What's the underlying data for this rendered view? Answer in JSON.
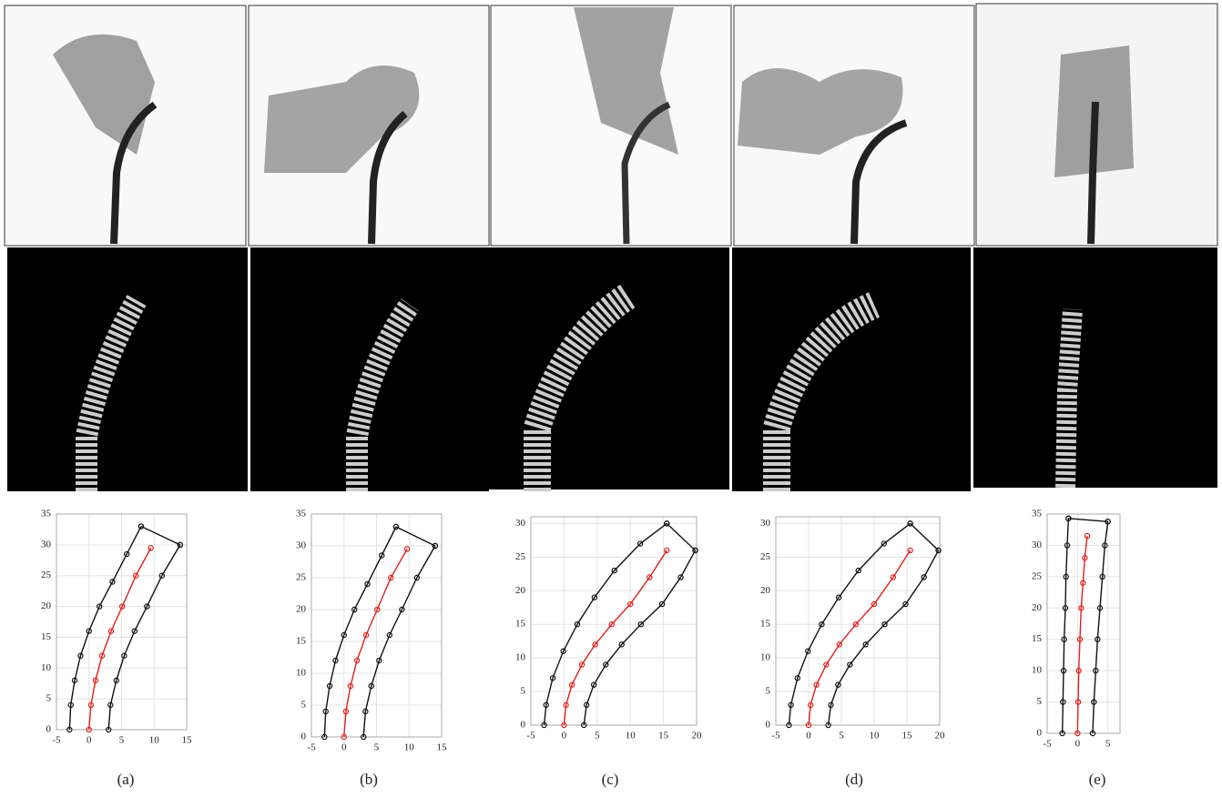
{
  "chart_data": [
    {
      "type": "line",
      "caption": "(a)",
      "xlim": [
        -5,
        15
      ],
      "xticks": [
        -5,
        0,
        5,
        10,
        15
      ],
      "ylim": [
        0,
        35
      ],
      "yticks": [
        0,
        5,
        10,
        15,
        20,
        25,
        30,
        35
      ],
      "grid": true,
      "series": [
        {
          "color": "#111111",
          "x": [
            -3,
            -2.8,
            -2.2,
            -1.3,
            0,
            1.6,
            3.6,
            5.8,
            8
          ],
          "values": [
            0,
            4,
            8,
            12,
            16,
            20,
            24,
            28.5,
            33
          ]
        },
        {
          "color": "#e02020",
          "x": [
            0,
            0.3,
            1.0,
            2.0,
            3.4,
            5.1,
            7.2,
            9.5
          ],
          "values": [
            0,
            4,
            8,
            12,
            16,
            20,
            25,
            29.5
          ]
        },
        {
          "color": "#111111",
          "x": [
            3,
            3.3,
            4.2,
            5.4,
            7,
            8.9,
            11.2,
            14
          ],
          "values": [
            0,
            4,
            8,
            12,
            16,
            20,
            25,
            30
          ]
        },
        {
          "color": "#111111",
          "x": [
            8,
            14
          ],
          "values": [
            33,
            30
          ]
        }
      ]
    },
    {
      "type": "line",
      "caption": "(b)",
      "xlim": [
        -5,
        15
      ],
      "xticks": [
        -5,
        0,
        5,
        10,
        15
      ],
      "ylim": [
        0,
        35
      ],
      "yticks": [
        0,
        5,
        10,
        15,
        20,
        25,
        30,
        35
      ],
      "grid": true,
      "series": [
        {
          "color": "#111111",
          "x": [
            -3,
            -2.8,
            -2.2,
            -1.3,
            0,
            1.6,
            3.6,
            5.8,
            8
          ],
          "values": [
            0,
            4,
            8,
            12,
            16,
            20,
            24,
            28.5,
            33
          ]
        },
        {
          "color": "#e02020",
          "x": [
            0,
            0.3,
            1.0,
            2.0,
            3.4,
            5.1,
            7.2,
            9.7
          ],
          "values": [
            0,
            4,
            8,
            12,
            16,
            20,
            25,
            29.5
          ]
        },
        {
          "color": "#111111",
          "x": [
            3,
            3.3,
            4.2,
            5.4,
            7,
            8.9,
            11.2,
            14
          ],
          "values": [
            0,
            4,
            8,
            12,
            16,
            20,
            25,
            30
          ]
        },
        {
          "color": "#111111",
          "x": [
            8,
            14
          ],
          "values": [
            33,
            30
          ]
        }
      ]
    },
    {
      "type": "line",
      "caption": "(c)",
      "xlim": [
        -5,
        20
      ],
      "xticks": [
        -5,
        0,
        5,
        10,
        15,
        20
      ],
      "ylim": [
        0,
        31
      ],
      "yticks": [
        0,
        5,
        10,
        15,
        20,
        25,
        30
      ],
      "grid": true,
      "series": [
        {
          "color": "#111111",
          "x": [
            -3,
            -2.7,
            -1.7,
            -0.1,
            2,
            4.6,
            7.6,
            11.5,
            15.5
          ],
          "values": [
            0,
            3,
            7,
            11,
            15,
            19,
            23,
            27,
            30
          ]
        },
        {
          "color": "#e02020",
          "x": [
            0,
            0.3,
            1.2,
            2.7,
            4.7,
            7.2,
            10,
            12.9,
            15.5
          ],
          "values": [
            0,
            3,
            6,
            9,
            12,
            15,
            18,
            22,
            26
          ]
        },
        {
          "color": "#111111",
          "x": [
            3,
            3.4,
            4.5,
            6.3,
            8.7,
            11.6,
            14.8,
            17.6,
            19.8
          ],
          "values": [
            0,
            3,
            6,
            9,
            12,
            15,
            18,
            22,
            26
          ]
        },
        {
          "color": "#111111",
          "x": [
            15.5,
            19.8
          ],
          "values": [
            30,
            26
          ]
        }
      ]
    },
    {
      "type": "line",
      "caption": "(d)",
      "xlim": [
        -5,
        20
      ],
      "xticks": [
        -5,
        0,
        5,
        10,
        15,
        20
      ],
      "ylim": [
        0,
        31
      ],
      "yticks": [
        0,
        5,
        10,
        15,
        20,
        25,
        30
      ],
      "grid": true,
      "series": [
        {
          "color": "#111111",
          "x": [
            -3,
            -2.7,
            -1.7,
            -0.1,
            2,
            4.6,
            7.6,
            11.5,
            15.5
          ],
          "values": [
            0,
            3,
            7,
            11,
            15,
            19,
            23,
            27,
            30
          ]
        },
        {
          "color": "#e02020",
          "x": [
            0,
            0.3,
            1.2,
            2.7,
            4.7,
            7.2,
            10,
            12.9,
            15.5
          ],
          "values": [
            0,
            3,
            6,
            9,
            12,
            15,
            18,
            22,
            26
          ]
        },
        {
          "color": "#111111",
          "x": [
            3,
            3.4,
            4.5,
            6.3,
            8.7,
            11.6,
            14.8,
            17.6,
            19.8
          ],
          "values": [
            0,
            3,
            6,
            9,
            12,
            15,
            18,
            22,
            26
          ]
        },
        {
          "color": "#111111",
          "x": [
            15.5,
            19.8
          ],
          "values": [
            30,
            26
          ]
        }
      ]
    },
    {
      "type": "line",
      "caption": "(e)",
      "xlim": [
        -5,
        7
      ],
      "xticks": [
        -5,
        0,
        5
      ],
      "ylim": [
        0,
        35
      ],
      "yticks": [
        0,
        5,
        10,
        15,
        20,
        25,
        30,
        35
      ],
      "grid": true,
      "series": [
        {
          "color": "#111111",
          "x": [
            -2.5,
            -2.4,
            -2.3,
            -2.2,
            -2.0,
            -1.9,
            -1.7,
            -1.5
          ],
          "values": [
            0,
            5,
            10,
            15,
            20,
            25,
            30,
            34.3
          ]
        },
        {
          "color": "#e02020",
          "x": [
            0,
            0.1,
            0.2,
            0.4,
            0.6,
            0.9,
            1.2,
            1.6
          ],
          "values": [
            0,
            5,
            10,
            15,
            20,
            24,
            28,
            31.5
          ]
        },
        {
          "color": "#111111",
          "x": [
            2.5,
            2.7,
            3.0,
            3.3,
            3.7,
            4.1,
            4.5,
            5
          ],
          "values": [
            0,
            5,
            10,
            15,
            20,
            25,
            30,
            33.8
          ]
        },
        {
          "color": "#111111",
          "x": [
            -1.5,
            5
          ],
          "values": [
            34.3,
            33.8
          ]
        }
      ]
    }
  ]
}
